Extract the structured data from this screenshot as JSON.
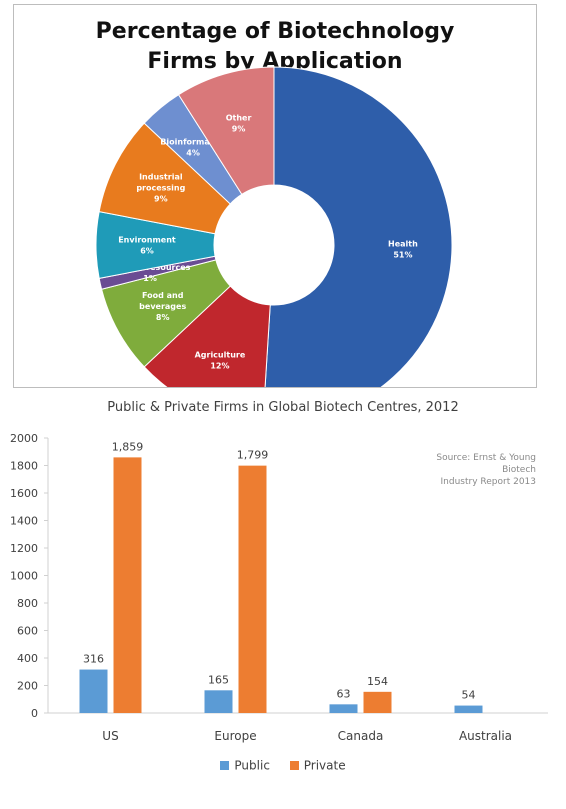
{
  "chart_data": [
    {
      "type": "pie",
      "title": "Percentage of Biotechnology Firms by Application",
      "title_lines": [
        "Percentage of Biotechnology",
        "Firms by Application"
      ],
      "slices": [
        {
          "label": "Health",
          "value": 51,
          "color": "#2e5eaa"
        },
        {
          "label": "Agriculture",
          "value": 12,
          "color": "#c0272d"
        },
        {
          "label": "Food and beverages",
          "value": 8,
          "color": "#7fac3c"
        },
        {
          "label": "Natural resources",
          "value": 1,
          "color": "#6a4c93"
        },
        {
          "label": "Environment",
          "value": 6,
          "color": "#1f9bb8"
        },
        {
          "label": "Industrial processing",
          "value": 9,
          "color": "#e87b1e"
        },
        {
          "label": "Bioinformatics",
          "value": 4,
          "color": "#6e8fd0"
        },
        {
          "label": "Other",
          "value": 9,
          "color": "#d9787a"
        }
      ],
      "slice_label_lines": [
        [
          "Health",
          "51%"
        ],
        [
          "Agriculture",
          "12%"
        ],
        [
          "Food and",
          "beverages",
          "8%"
        ],
        [
          "Natural resources",
          "1%"
        ],
        [
          "Environment",
          "6%"
        ],
        [
          "Industrial",
          "processing",
          "9%"
        ],
        [
          "Bioinformatics",
          "4%"
        ],
        [
          "Other",
          "9%"
        ]
      ]
    },
    {
      "type": "bar",
      "title": "Public & Private Firms in Global Biotech Centres, 2012",
      "categories": [
        "US",
        "Europe",
        "Canada",
        "Australia"
      ],
      "series": [
        {
          "name": "Public",
          "values": [
            316,
            165,
            63,
            54
          ],
          "color": "#5b9bd5"
        },
        {
          "name": "Private",
          "values": [
            1859,
            1799,
            154,
            null
          ],
          "color": "#ed7d31"
        }
      ],
      "data_labels": [
        [
          "316",
          "165",
          "63",
          "54"
        ],
        [
          "1,859",
          "1,799",
          "154",
          ""
        ]
      ],
      "ylim": [
        0,
        2000
      ],
      "yticks": [
        0,
        200,
        400,
        600,
        800,
        1000,
        1200,
        1400,
        1600,
        1800,
        2000
      ],
      "legend_position": "bottom",
      "grid": false,
      "annotation_lines": [
        "Source: Ernst & Young Biotech",
        "Industry Report 2013"
      ]
    }
  ]
}
